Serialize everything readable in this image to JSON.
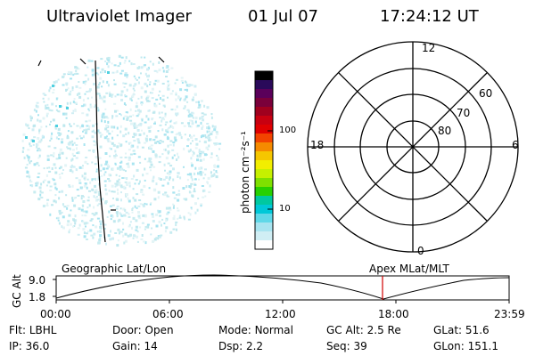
{
  "header": {
    "title": "Ultraviolet Imager",
    "date": "01 Jul 07",
    "time": "17:24:12 UT"
  },
  "colorbar": {
    "unit_label": "photon cm⁻²s⁻¹",
    "ticks": [
      "100",
      "10"
    ],
    "colors": [
      "#000000",
      "#2a0a5a",
      "#5a005a",
      "#7a003a",
      "#a0001e",
      "#c80010",
      "#e00000",
      "#f24400",
      "#f58a00",
      "#f5c600",
      "#f2ee00",
      "#c6f000",
      "#7fe000",
      "#27d000",
      "#00c8a0",
      "#00c8d8",
      "#60d8e8",
      "#a8e4f0",
      "#d0eef4",
      "#ffffff"
    ]
  },
  "polar": {
    "mlt_labels": {
      "top": "12",
      "bottom": "0",
      "left": "18",
      "right": "6"
    },
    "lat_labels": [
      "60",
      "70",
      "80"
    ]
  },
  "timeline": {
    "y_axis_label": "GC Alt",
    "y_ticks": [
      "9.0",
      "1.8"
    ],
    "left_caption": "Geographic Lat/Lon",
    "right_caption": "Apex MLat/MLT",
    "x_ticks": [
      "00:00",
      "06:00",
      "12:00",
      "18:00",
      "23:59"
    ]
  },
  "info": {
    "row1": [
      {
        "label": "Flt:",
        "value": "LBHL"
      },
      {
        "label": "Door:",
        "value": "Open"
      },
      {
        "label": "Mode:",
        "value": "Normal"
      },
      {
        "label": "GC Alt:",
        "value": "2.5 Re"
      },
      {
        "label": "GLat:",
        "value": "51.6"
      }
    ],
    "row2": [
      {
        "label": "IP:",
        "value": "36.0"
      },
      {
        "label": "Gain:",
        "value": "14"
      },
      {
        "label": "Dsp:",
        "value": "2.2"
      },
      {
        "label": "Seq:",
        "value": "39"
      },
      {
        "label": "GLon:",
        "value": "151.1"
      }
    ]
  }
}
